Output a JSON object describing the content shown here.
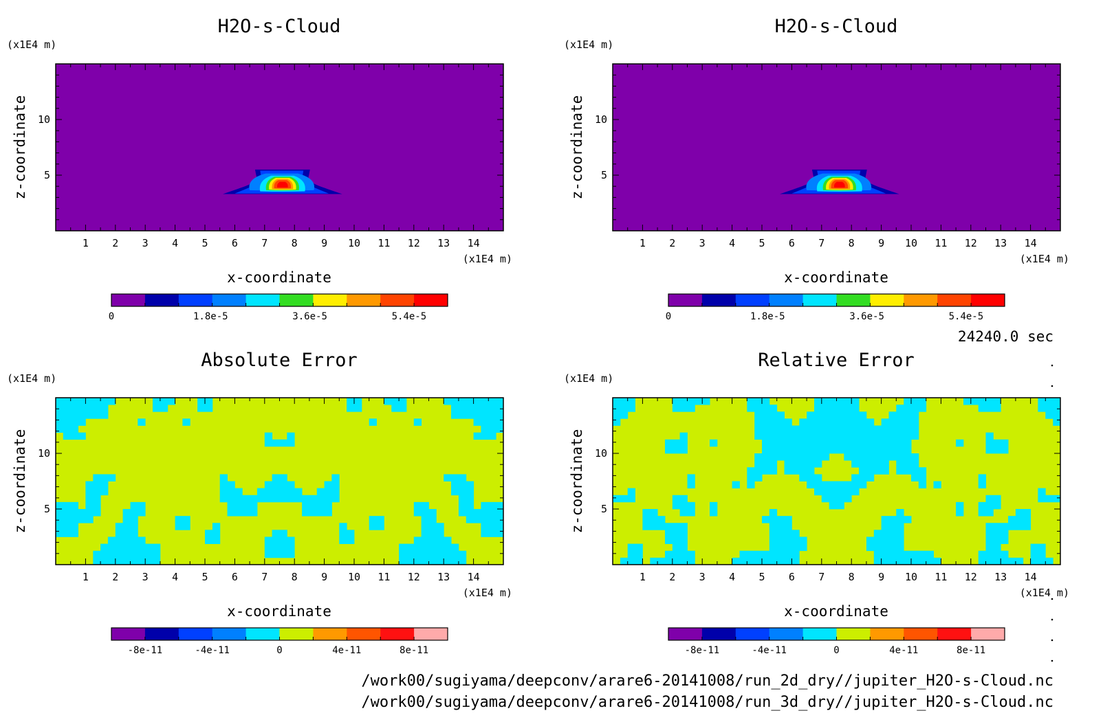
{
  "chart_data": [
    {
      "type": "heatmap",
      "title": "H2O-s-Cloud",
      "xlabel": "x-coordinate",
      "ylabel": "z-coordinate",
      "x_unit": "(x1E4 m)",
      "y_unit": "(x1E4 m)",
      "xlim": [
        0,
        15
      ],
      "ylim": [
        0,
        15
      ],
      "x_ticks": [
        1,
        2,
        3,
        4,
        5,
        6,
        7,
        8,
        9,
        10,
        11,
        12,
        13,
        14
      ],
      "y_ticks": [
        5,
        10
      ],
      "field": "cloud",
      "colorbar": {
        "range": [
          0,
          6.1e-05
        ],
        "levels": 10,
        "colors": [
          "#7f00aa",
          "#0000aa",
          "#0040ff",
          "#0080ff",
          "#00e5ff",
          "#33dd22",
          "#ffee00",
          "#ff9900",
          "#ff4400",
          "#ff0000"
        ],
        "tick_values": [
          0,
          1.8e-05,
          3.6e-05,
          5.4e-05
        ],
        "tick_labels": [
          "0",
          "1.8e-5",
          "3.6e-5",
          "5.4e-5"
        ]
      },
      "features": [
        {
          "type": "cloud",
          "x_center": 7.6,
          "z_center": 4.2,
          "x_extent": [
            5.6,
            9.6
          ],
          "z_extent": [
            3.3,
            5.5
          ],
          "peak": 5.8e-05
        }
      ]
    },
    {
      "type": "heatmap",
      "title": "H2O-s-Cloud",
      "xlabel": "x-coordinate",
      "ylabel": "z-coordinate",
      "x_unit": "(x1E4 m)",
      "y_unit": "(x1E4 m)",
      "xlim": [
        0,
        15
      ],
      "ylim": [
        0,
        15
      ],
      "x_ticks": [
        1,
        2,
        3,
        4,
        5,
        6,
        7,
        8,
        9,
        10,
        11,
        12,
        13,
        14
      ],
      "y_ticks": [
        5,
        10
      ],
      "field": "cloud",
      "colorbar": {
        "range": [
          0,
          6.1e-05
        ],
        "levels": 10,
        "colors": [
          "#7f00aa",
          "#0000aa",
          "#0040ff",
          "#0080ff",
          "#00e5ff",
          "#33dd22",
          "#ffee00",
          "#ff9900",
          "#ff4400",
          "#ff0000"
        ],
        "tick_values": [
          0,
          1.8e-05,
          3.6e-05,
          5.4e-05
        ],
        "tick_labels": [
          "0",
          "1.8e-5",
          "3.6e-5",
          "5.4e-5"
        ]
      },
      "features": [
        {
          "type": "cloud",
          "x_center": 7.6,
          "z_center": 4.2,
          "x_extent": [
            5.6,
            9.6
          ],
          "z_extent": [
            3.3,
            5.5
          ],
          "peak": 5.8e-05
        }
      ]
    },
    {
      "type": "heatmap",
      "title": "Absolute Error",
      "xlabel": "x-coordinate",
      "ylabel": "z-coordinate",
      "x_unit": "(x1E4 m)",
      "y_unit": "(x1E4 m)",
      "xlim": [
        0,
        15
      ],
      "ylim": [
        0,
        15
      ],
      "x_ticks": [
        1,
        2,
        3,
        4,
        5,
        6,
        7,
        8,
        9,
        10,
        11,
        12,
        13,
        14
      ],
      "y_ticks": [
        5,
        10
      ],
      "field": "noise",
      "noise_seed": 11,
      "colorbar": {
        "range": [
          -1e-10,
          1e-10
        ],
        "levels": 10,
        "colors": [
          "#7f00aa",
          "#0000aa",
          "#0040ff",
          "#0080ff",
          "#00e5ff",
          "#ccee00",
          "#ff9900",
          "#ff5500",
          "#ff1111",
          "#ffaaaa"
        ],
        "tick_values": [
          -8e-11,
          -4e-11,
          0,
          4e-11,
          8e-11
        ],
        "tick_labels": [
          "-8e-11",
          "-4e-11",
          "0",
          "4e-11",
          "8e-11"
        ]
      }
    },
    {
      "type": "heatmap",
      "title": "Relative Error",
      "xlabel": "x-coordinate",
      "ylabel": "z-coordinate",
      "x_unit": "(x1E4 m)",
      "y_unit": "(x1E4 m)",
      "xlim": [
        0,
        15
      ],
      "ylim": [
        0,
        15
      ],
      "x_ticks": [
        1,
        2,
        3,
        4,
        5,
        6,
        7,
        8,
        9,
        10,
        11,
        12,
        13,
        14
      ],
      "y_ticks": [
        5,
        10
      ],
      "field": "noise",
      "noise_seed": 23,
      "colorbar": {
        "range": [
          -1e-10,
          1e-10
        ],
        "levels": 10,
        "colors": [
          "#7f00aa",
          "#0000aa",
          "#0040ff",
          "#0080ff",
          "#00e5ff",
          "#ccee00",
          "#ff9900",
          "#ff5500",
          "#ff1111",
          "#ffaaaa"
        ],
        "tick_values": [
          -8e-11,
          -4e-11,
          0,
          4e-11,
          8e-11
        ],
        "tick_labels": [
          "-8e-11",
          "-4e-11",
          "0",
          "4e-11",
          "8e-11"
        ]
      }
    }
  ],
  "timestamp": "24240.0 sec",
  "footer": {
    "line1": "/work00/sugiyama/deepconv/arare6-20141008/run_2d_dry//jupiter_H2O-s-Cloud.nc",
    "line2": "/work00/sugiyama/deepconv/arare6-20141008/run_3d_dry//jupiter_H2O-s-Cloud.nc"
  }
}
